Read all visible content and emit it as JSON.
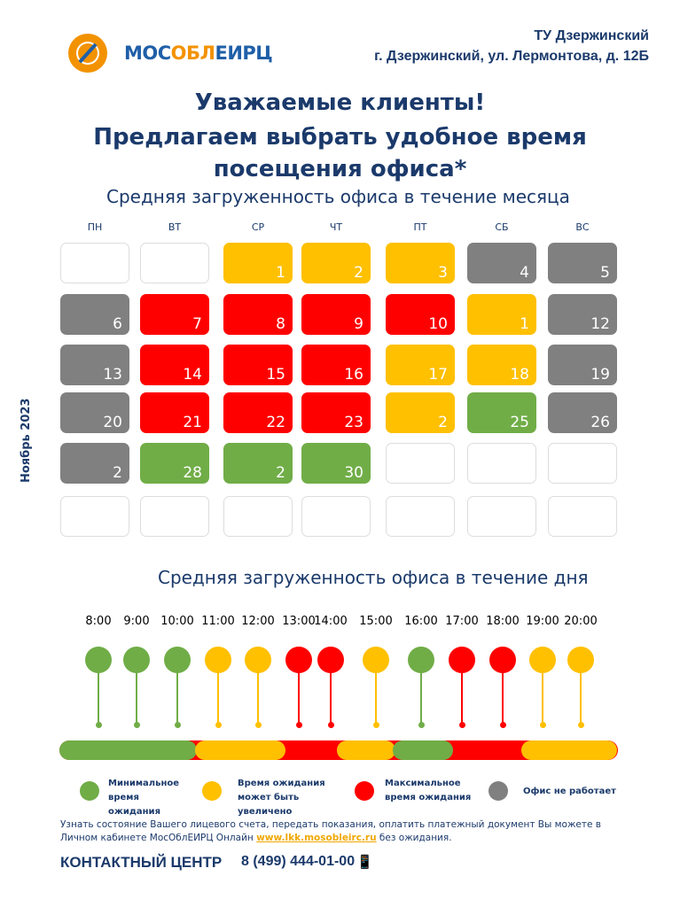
{
  "header": {
    "logo_text_a": "МОС",
    "logo_text_b": "ОБЛ",
    "logo_text_c": "ЕИРЦ",
    "office": "ТУ Дзержинский",
    "address": "г. Дзержинский, ул. Лермонтова, д. 12Б"
  },
  "title": {
    "line1": "Уважаемые клиенты!",
    "line2": "Предлагаем выбрать удобное время",
    "line3": "посещения офиса*"
  },
  "month_section": {
    "title": "Средняя загруженность офиса в течение месяца",
    "month_label": "Ноябрь 2023",
    "weekdays": [
      "ПН",
      "ВТ",
      "СР",
      "ЧТ",
      "ПТ",
      "СБ",
      "ВС"
    ],
    "rows": [
      [
        {
          "d": "",
          "s": "empty"
        },
        {
          "d": "",
          "s": "empty"
        },
        {
          "d": "1",
          "s": "yellow"
        },
        {
          "d": "2",
          "s": "yellow"
        },
        {
          "d": "3",
          "s": "yellow"
        },
        {
          "d": "4",
          "s": "gray"
        },
        {
          "d": "5",
          "s": "gray"
        }
      ],
      [
        {
          "d": "6",
          "s": "gray"
        },
        {
          "d": "7",
          "s": "red"
        },
        {
          "d": "8",
          "s": "red"
        },
        {
          "d": "9",
          "s": "red"
        },
        {
          "d": "10",
          "s": "red"
        },
        {
          "d": "1",
          "s": "yellow"
        },
        {
          "d": "12",
          "s": "gray"
        }
      ],
      [
        {
          "d": "13",
          "s": "gray"
        },
        {
          "d": "14",
          "s": "red"
        },
        {
          "d": "15",
          "s": "red"
        },
        {
          "d": "16",
          "s": "red"
        },
        {
          "d": "17",
          "s": "yellow"
        },
        {
          "d": "18",
          "s": "yellow"
        },
        {
          "d": "19",
          "s": "gray"
        }
      ],
      [
        {
          "d": "20",
          "s": "gray"
        },
        {
          "d": "21",
          "s": "red"
        },
        {
          "d": "22",
          "s": "red"
        },
        {
          "d": "23",
          "s": "red"
        },
        {
          "d": "2",
          "s": "yellow"
        },
        {
          "d": "25",
          "s": "green"
        },
        {
          "d": "26",
          "s": "gray"
        }
      ],
      [
        {
          "d": "2",
          "s": "gray"
        },
        {
          "d": "28",
          "s": "green"
        },
        {
          "d": "2",
          "s": "green"
        },
        {
          "d": "30",
          "s": "green"
        },
        {
          "d": "",
          "s": "empty"
        },
        {
          "d": "",
          "s": "empty"
        },
        {
          "d": "",
          "s": "empty"
        }
      ],
      [
        {
          "d": "",
          "s": "empty"
        },
        {
          "d": "",
          "s": "empty"
        },
        {
          "d": "",
          "s": "empty"
        },
        {
          "d": "",
          "s": "empty"
        },
        {
          "d": "",
          "s": "empty"
        },
        {
          "d": "",
          "s": "empty"
        },
        {
          "d": "",
          "s": "empty"
        }
      ]
    ]
  },
  "day_section": {
    "title": "Средняя загруженность офиса в течение дня",
    "hours": [
      {
        "t": "8:00",
        "s": "green"
      },
      {
        "t": "9:00",
        "s": "green"
      },
      {
        "t": "10:00",
        "s": "green"
      },
      {
        "t": "11:00",
        "s": "yellow"
      },
      {
        "t": "12:00",
        "s": "yellow"
      },
      {
        "t": "13:00",
        "s": "red"
      },
      {
        "t": "14:00",
        "s": "red"
      },
      {
        "t": "15:00",
        "s": "yellow"
      },
      {
        "t": "16:00",
        "s": "green"
      },
      {
        "t": "17:00",
        "s": "red"
      },
      {
        "t": "18:00",
        "s": "red"
      },
      {
        "t": "19:00",
        "s": "yellow"
      },
      {
        "t": "20:00",
        "s": "yellow"
      }
    ]
  },
  "colors": {
    "green": "#70ad47",
    "yellow": "#ffc000",
    "red": "#ff0000",
    "gray": "#808080"
  },
  "legend": {
    "green": "Минимальное время ожидания",
    "yellow": "Время ожидания может быть увеличено",
    "red": "Максимальное время ожидания",
    "gray": "Офис не работает"
  },
  "info": {
    "text1": "Узнать состояние Вашего лицевого счета, передать показания, оплатить платежный документ Вы можете в Личном кабинете МосОблЕИРЦ Онлайн ",
    "link": "www.lkk.mosobleirc.ru",
    "text2": " без ожидания."
  },
  "contact": {
    "label": "КОНТАКТНЫЙ ЦЕНТР",
    "phone": "8 (499) 444-01-00"
  }
}
